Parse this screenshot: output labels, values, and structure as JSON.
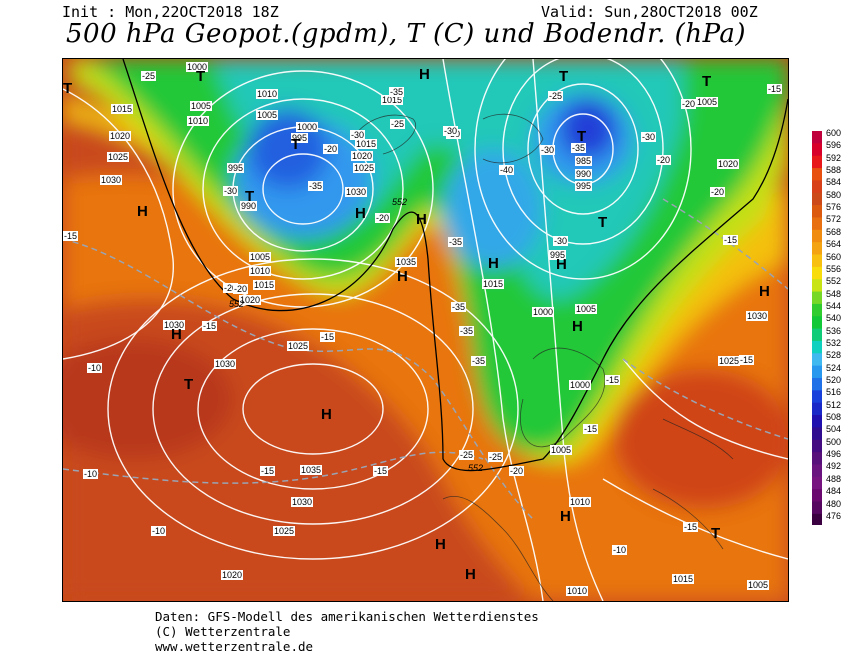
{
  "header": {
    "init": "Init : Mon,22OCT2018 18Z",
    "valid": "Valid: Sun,28OCT2018 00Z",
    "title": "500 hPa Geopot.(gpdm), T (C) und Bodendr. (hPa)"
  },
  "legend": {
    "values": [
      "600",
      "596",
      "592",
      "588",
      "584",
      "580",
      "576",
      "572",
      "568",
      "564",
      "560",
      "556",
      "552",
      "548",
      "544",
      "540",
      "536",
      "532",
      "528",
      "524",
      "520",
      "516",
      "512",
      "508",
      "504",
      "500",
      "496",
      "492",
      "488",
      "484",
      "480",
      "476"
    ],
    "colors": [
      "#c0003c",
      "#d8002a",
      "#e8181a",
      "#e85010",
      "#d8401a",
      "#cc4a1a",
      "#dc5a10",
      "#e87010",
      "#f08c10",
      "#f4a412",
      "#f8c010",
      "#f8dc0c",
      "#c8e414",
      "#78d828",
      "#30cc30",
      "#12c838",
      "#10cc78",
      "#10d0c0",
      "#40b8f0",
      "#2898ee",
      "#2070e8",
      "#1a40dc",
      "#1a28c8",
      "#2010b0",
      "#300c90",
      "#440c80",
      "#58107a",
      "#6a1480",
      "#781480",
      "#6a0870",
      "#560860",
      "#3a0040"
    ]
  },
  "isobars": [
    {
      "value": "1000"
    },
    {
      "value": "1010"
    },
    {
      "value": "1005"
    },
    {
      "value": "1010"
    },
    {
      "value": "1015"
    },
    {
      "value": "1020"
    },
    {
      "value": "1025"
    },
    {
      "value": "1030"
    },
    {
      "value": "1005"
    },
    {
      "value": "995"
    },
    {
      "value": "1000"
    },
    {
      "value": "995"
    },
    {
      "value": "990"
    },
    {
      "value": "1020"
    },
    {
      "value": "1015"
    },
    {
      "value": "1025"
    },
    {
      "value": "1030"
    },
    {
      "value": "1005"
    },
    {
      "value": "1010"
    },
    {
      "value": "1015"
    },
    {
      "value": "1020"
    },
    {
      "value": "1035"
    },
    {
      "value": "1030"
    },
    {
      "value": "1025"
    },
    {
      "value": "1030"
    },
    {
      "value": "1035"
    },
    {
      "value": "1030"
    },
    {
      "value": "1025"
    },
    {
      "value": "1020"
    },
    {
      "value": "1015"
    },
    {
      "value": "1000"
    },
    {
      "value": "995"
    },
    {
      "value": "1005"
    },
    {
      "value": "1000"
    },
    {
      "value": "1005"
    },
    {
      "value": "1010"
    },
    {
      "value": "1015"
    },
    {
      "value": "1010"
    },
    {
      "value": "985"
    },
    {
      "value": "990"
    },
    {
      "value": "995"
    },
    {
      "value": "1005"
    },
    {
      "value": "1020"
    },
    {
      "value": "1030"
    },
    {
      "value": "1025"
    },
    {
      "value": "1015"
    },
    {
      "value": "1005"
    }
  ],
  "temps": [
    "-25",
    "-35",
    "-30",
    "-30",
    "-35",
    "-25",
    "-20",
    "-30",
    "-20",
    "-15",
    "-20",
    "-35",
    "-40",
    "-30",
    "-30",
    "-35",
    "-25",
    "-20",
    "-30",
    "-15",
    "-20",
    "-15",
    "-30",
    "-20",
    "-15",
    "-15",
    "-15",
    "-10",
    "-10",
    "-10",
    "-15",
    "-25",
    "-20",
    "-15",
    "-15",
    "-20",
    "-25",
    "-10",
    "-35",
    "-35",
    "-35",
    "-15",
    "-15"
  ],
  "contour552": "552",
  "pressure_centers": [
    "T",
    "T",
    "T",
    "T",
    "T",
    "T",
    "H",
    "H",
    "H",
    "H",
    "H",
    "H",
    "H",
    "T",
    "H",
    "H",
    "T",
    "T",
    "H",
    "H",
    "T",
    "H",
    "H",
    "H"
  ],
  "footer": {
    "line1": "Daten: GFS-Modell des amerikanischen Wetterdienstes",
    "line2": "(C) Wetterzentrale",
    "line3": "www.wetterzentrale.de"
  }
}
